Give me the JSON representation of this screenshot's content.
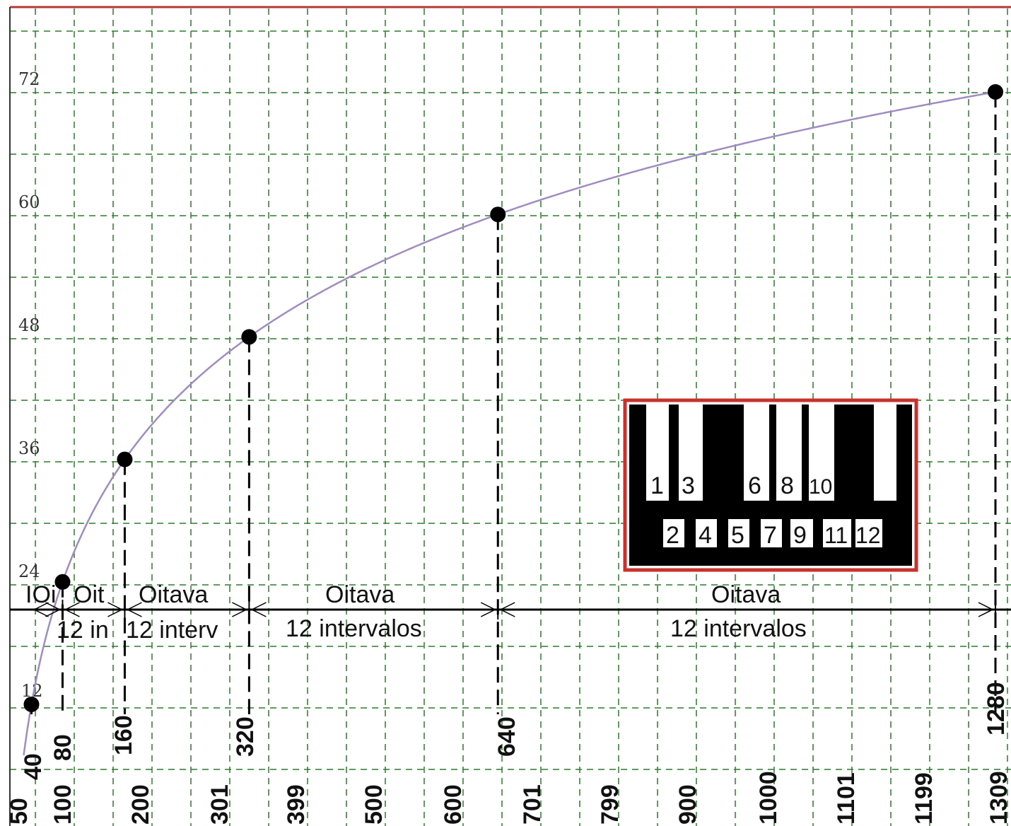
{
  "colors": {
    "grid": "#2f7a2f",
    "curve": "#a08cc0",
    "frame": "#c8322d",
    "axis": "#000000",
    "point": "#000000"
  },
  "chart_data": {
    "type": "line",
    "title": "",
    "xlabel": "",
    "ylabel": "",
    "grid": true,
    "x_axis_ticks": [
      "50",
      "100",
      "200",
      "301",
      "399",
      "500",
      "600",
      "701",
      "799",
      "900",
      "1000",
      "1101",
      "1199",
      "1309"
    ],
    "y_axis_ticks": [
      "12",
      "24",
      "36",
      "48",
      "60",
      "72"
    ],
    "ylim": [
      0,
      76
    ],
    "points": [
      {
        "x": 40,
        "y": 12,
        "label": "40"
      },
      {
        "x": 80,
        "y": 24,
        "label": "80"
      },
      {
        "x": 160,
        "y": 36,
        "label": "160"
      },
      {
        "x": 320,
        "y": 48,
        "label": "320"
      },
      {
        "x": 640,
        "y": 60,
        "label": "640"
      },
      {
        "x": 1280,
        "y": 72,
        "label": "1280"
      }
    ],
    "octave_spans": [
      {
        "from": 40,
        "to": 80,
        "name": "IOi",
        "count": ""
      },
      {
        "from": 80,
        "to": 160,
        "name": "Oit",
        "count": "12 in"
      },
      {
        "from": 160,
        "to": 320,
        "name": "Oitava",
        "count": "12 interv"
      },
      {
        "from": 320,
        "to": 640,
        "name": "Oitava",
        "count": "12 intervalos"
      },
      {
        "from": 640,
        "to": 1280,
        "name": "Oitava",
        "count": "12 intervalos"
      }
    ]
  },
  "keyboard_inset": {
    "white_key_labels": [
      "1",
      "3",
      "6",
      "8",
      "10"
    ],
    "black_key_labels": [
      "2",
      "4",
      "5",
      "7",
      "9",
      "11",
      "12"
    ]
  }
}
